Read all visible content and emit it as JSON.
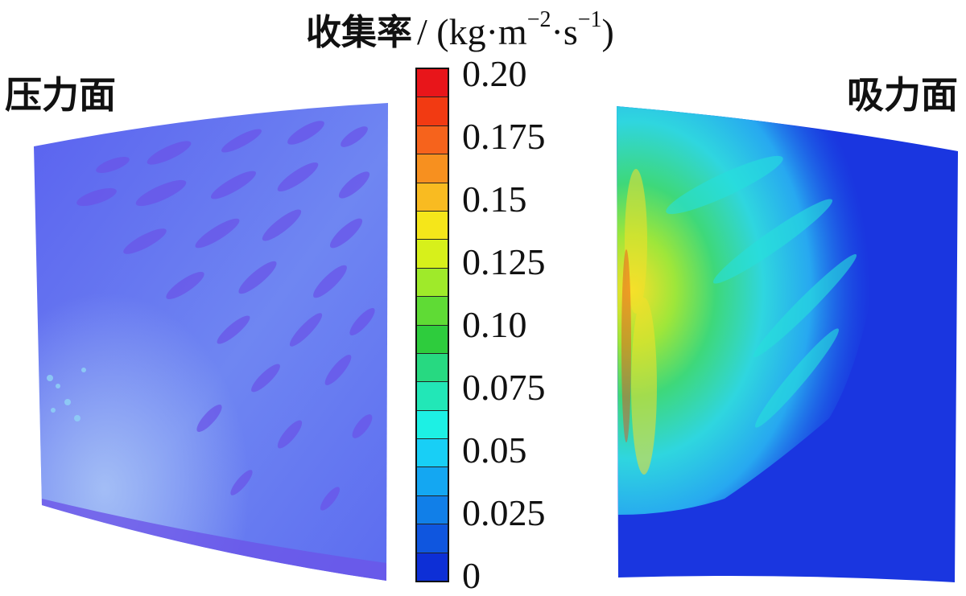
{
  "title": {
    "label": "收集率",
    "unit_prefix": "/ (kg·m",
    "unit_exp1": "−2",
    "unit_mid": "·s",
    "unit_exp2": "−1",
    "unit_suffix": ")"
  },
  "faces": {
    "left": "压力面",
    "right": "吸力面"
  },
  "colorbar": {
    "ticks": [
      "0.20",
      "0.175",
      "0.15",
      "0.125",
      "0.10",
      "0.075",
      "0.05",
      "0.025",
      "0"
    ],
    "colors": [
      "#e8151a",
      "#f23a12",
      "#f6631c",
      "#f7901f",
      "#f9bb21",
      "#f5e61a",
      "#d7f01b",
      "#9fea2a",
      "#5fdb35",
      "#2ecc3d",
      "#27d981",
      "#22e7b7",
      "#1df0e4",
      "#18cff6",
      "#14a7f2",
      "#117fe8",
      "#0f56df",
      "#0d2fd6"
    ]
  },
  "chart_data": {
    "type": "heatmap",
    "title": "收集率 / (kg·m−2·s−1)",
    "panels": [
      "压力面",
      "吸力面"
    ],
    "colorbar_range": [
      0,
      0.2
    ],
    "colorbar_ticks": [
      0.2,
      0.175,
      0.15,
      0.125,
      0.1,
      0.075,
      0.05,
      0.025,
      0
    ]
  }
}
